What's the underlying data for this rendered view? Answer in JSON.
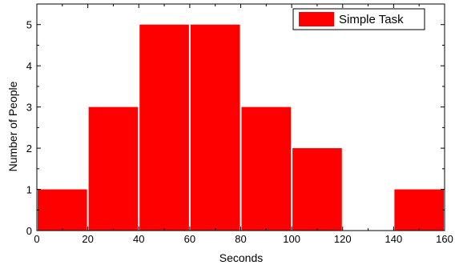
{
  "chart_data": {
    "type": "bar",
    "title": "",
    "xlabel": "Seconds",
    "ylabel": "Number of People",
    "xlim": [
      0,
      160
    ],
    "ylim": [
      0,
      5.5
    ],
    "bins": [
      {
        "x0": 0,
        "x1": 20,
        "value": 1
      },
      {
        "x0": 20,
        "x1": 40,
        "value": 3
      },
      {
        "x0": 40,
        "x1": 60,
        "value": 5
      },
      {
        "x0": 60,
        "x1": 80,
        "value": 5
      },
      {
        "x0": 80,
        "x1": 100,
        "value": 3
      },
      {
        "x0": 100,
        "x1": 120,
        "value": 2
      },
      {
        "x0": 120,
        "x1": 140,
        "value": 0
      },
      {
        "x0": 140,
        "x1": 160,
        "value": 1
      }
    ],
    "x_ticks": [
      "0",
      "20",
      "40",
      "60",
      "80",
      "100",
      "120",
      "140",
      "160"
    ],
    "y_ticks": [
      "0",
      "1",
      "2",
      "3",
      "4",
      "5"
    ],
    "series": [
      {
        "name": "Simple Task",
        "color": "#ff0000"
      }
    ],
    "legend": {
      "placement": "top-right"
    },
    "grid": false
  }
}
